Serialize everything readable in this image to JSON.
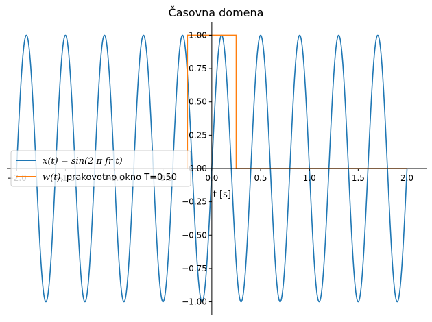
{
  "chart_data": {
    "type": "line",
    "title": "Časovna domena",
    "xlabel": "t [s]",
    "ylabel": "",
    "xlim": [
      -2.1,
      2.2
    ],
    "ylim": [
      -1.1,
      1.1
    ],
    "xticks": [
      -2.0,
      -1.5,
      -1.0,
      -0.5,
      0.0,
      0.5,
      1.0,
      1.5,
      2.0
    ],
    "xtick_labels": [
      "−2.0",
      "−1.5",
      "−1.0",
      "−0.5",
      "0.0",
      "0.5",
      "1.0",
      "1.5",
      "2.0"
    ],
    "yticks": [
      -1.0,
      -0.75,
      -0.5,
      -0.25,
      0.0,
      0.25,
      0.5,
      0.75,
      1.0
    ],
    "ytick_labels": [
      "−1.00",
      "−0.75",
      "−0.50",
      "−0.25",
      "0.00",
      "0.25",
      "0.50",
      "0.75",
      "1.00"
    ],
    "grid": false,
    "legend_position": "center-left",
    "series": [
      {
        "name": "x(t) = sin(2 π fr t)",
        "legend_parts": {
          "math": "x(t) = sin(2 π fr t)",
          "text": ""
        },
        "color": "#1f77b4",
        "function": "sine",
        "frequency": 2.5,
        "x_range": [
          -2.0,
          2.0
        ]
      },
      {
        "name": "w(t), prakovotno okno T=0.50",
        "legend_parts": {
          "math": "w(t)",
          "text": ", prakovotno okno T=0.50"
        },
        "color": "#ff7f0e",
        "function": "rectangular_window",
        "x": [
          -0.25,
          -0.25,
          0.25,
          0.25,
          2.0
        ],
        "y": [
          0.0,
          1.0,
          1.0,
          0.0,
          0.0
        ]
      }
    ]
  }
}
